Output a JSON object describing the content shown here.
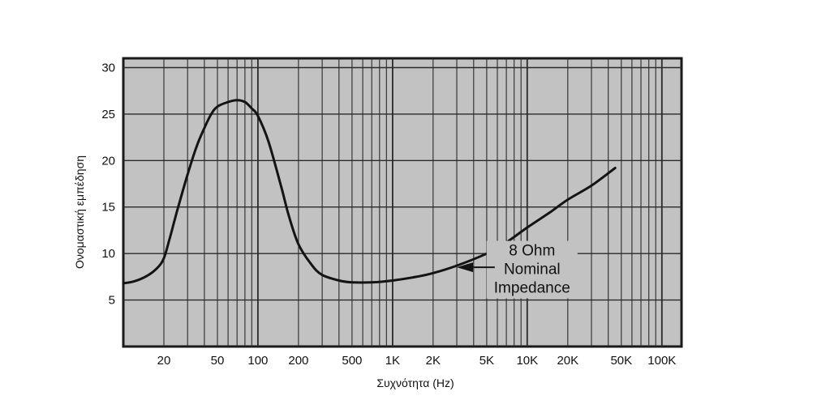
{
  "chart_data": {
    "type": "line",
    "title": "",
    "xlabel": "Συχνότητα (Hz)",
    "ylabel": "Ονομαστική εμπέδηση",
    "x_scale": "log",
    "xlim": [
      10,
      140000
    ],
    "ylim": [
      0,
      31
    ],
    "grid": true,
    "x_ticks": [
      {
        "value": 20,
        "label": "20"
      },
      {
        "value": 50,
        "label": "50"
      },
      {
        "value": 100,
        "label": "100"
      },
      {
        "value": 200,
        "label": "200"
      },
      {
        "value": 500,
        "label": "500"
      },
      {
        "value": 1000,
        "label": "1K"
      },
      {
        "value": 2000,
        "label": "2K"
      },
      {
        "value": 5000,
        "label": "5K"
      },
      {
        "value": 10000,
        "label": "10K"
      },
      {
        "value": 20000,
        "label": "20K"
      },
      {
        "value": 50000,
        "label": "50K"
      },
      {
        "value": 100000,
        "label": "100K"
      }
    ],
    "y_ticks": [
      5,
      10,
      15,
      20,
      25,
      30
    ],
    "series": [
      {
        "x": [
          10,
          12,
          15,
          18,
          20,
          22,
          25,
          30,
          35,
          40,
          45,
          50,
          60,
          70,
          80,
          90,
          100,
          120,
          150,
          170,
          200,
          250,
          300,
          400,
          500,
          700,
          1000,
          1500,
          2000,
          3000,
          5000,
          7000,
          10000,
          15000,
          20000,
          30000,
          45000
        ],
        "y": [
          6.8,
          7.0,
          7.6,
          8.5,
          9.5,
          11.5,
          14.5,
          18.5,
          21.5,
          23.5,
          25.0,
          25.8,
          26.3,
          26.5,
          26.3,
          25.6,
          24.8,
          22.0,
          17.0,
          14.0,
          11.0,
          8.8,
          7.7,
          7.1,
          6.9,
          6.9,
          7.1,
          7.5,
          7.9,
          8.7,
          10.0,
          11.2,
          12.8,
          14.5,
          15.8,
          17.3,
          19.2
        ]
      }
    ],
    "annotation": {
      "lines": [
        "8 Ohm",
        "Nominal",
        "Impedance"
      ],
      "points_to": {
        "x": 3000,
        "y": 8.7
      }
    }
  }
}
